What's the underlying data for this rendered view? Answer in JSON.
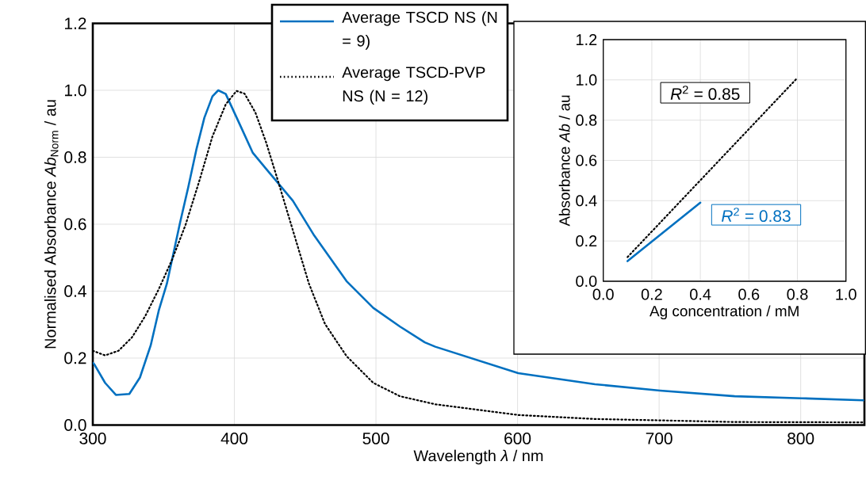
{
  "chart_data": [
    {
      "type": "line",
      "xlabel": "Wavelength *λ* / nm",
      "ylabel": "Normalised Absorbance *Ab*$_{Norm}$ / au",
      "xlim": [
        300,
        845
      ],
      "ylim": [
        0,
        1.2
      ],
      "xticks": [
        300,
        400,
        500,
        600,
        700,
        800
      ],
      "yticks": [
        {
          "value": 0,
          "label": "0.0"
        },
        {
          "value": 0.2,
          "label": "0.2"
        },
        {
          "value": 0.4,
          "label": "0.4"
        },
        {
          "value": 0.6,
          "label": "0.6"
        },
        {
          "value": 0.8,
          "label": "0.8"
        },
        {
          "value": 1.0,
          "label": "1.0"
        },
        {
          "value": 1.2,
          "label": "1.2"
        }
      ],
      "grid": true,
      "legend": "top",
      "series": [
        {
          "name": "Average TSCD NS (N = 9)",
          "color": "#0070c0",
          "line_style": "solid",
          "x": [
            300,
            301,
            308.7,
            316.3,
            325.8,
            333.3,
            340.9,
            346.6,
            352.3,
            361.7,
            367.4,
            373.1,
            378.8,
            384.5,
            388.6,
            393.9,
            403.4,
            412.9,
            422.3,
            431.8,
            441.3,
            456.4,
            479.2,
            498.1,
            517,
            534.5,
            541.9,
            600.5,
            654.7,
            700.6,
            753.4,
            800.8,
            844.2
          ],
          "values": [
            0.186,
            0.182,
            0.126,
            0.09,
            0.093,
            0.142,
            0.238,
            0.342,
            0.422,
            0.606,
            0.71,
            0.822,
            0.918,
            0.982,
            1.0,
            0.989,
            0.902,
            0.814,
            0.766,
            0.718,
            0.67,
            0.566,
            0.43,
            0.35,
            0.294,
            0.247,
            0.234,
            0.155,
            0.122,
            0.103,
            0.086,
            0.08,
            0.074
          ]
        },
        {
          "name": "Average TSCD-PVP NS (N = 12)",
          "color": "#000000",
          "line_style": "dotted",
          "x": [
            300,
            308.7,
            318.2,
            327.7,
            337.1,
            346.6,
            356,
            365.5,
            375,
            384.5,
            393.9,
            401.5,
            407.2,
            414.8,
            422.3,
            429.9,
            441.3,
            452.7,
            464,
            479.2,
            498.1,
            517,
            541.9,
            600.5,
            654.7,
            700.6,
            753.4,
            844.2
          ],
          "values": [
            0.222,
            0.208,
            0.222,
            0.262,
            0.326,
            0.406,
            0.494,
            0.598,
            0.726,
            0.862,
            0.958,
            0.998,
            0.99,
            0.934,
            0.846,
            0.742,
            0.582,
            0.422,
            0.302,
            0.206,
            0.126,
            0.086,
            0.062,
            0.03,
            0.018,
            0.014,
            0.009,
            0.008
          ]
        }
      ]
    },
    {
      "type": "line",
      "xlabel": "Ag concentration / mM",
      "ylabel": "Absorbance *Ab* / au",
      "xlim": [
        0,
        1
      ],
      "ylim": [
        0,
        1.2
      ],
      "xticks": [
        {
          "value": 0,
          "label": "0.0"
        },
        {
          "value": 0.2,
          "label": "0.2"
        },
        {
          "value": 0.4,
          "label": "0.4"
        },
        {
          "value": 0.6,
          "label": "0.6"
        },
        {
          "value": 0.8,
          "label": "0.8"
        },
        {
          "value": 1.0,
          "label": "1.0"
        }
      ],
      "yticks": [
        {
          "value": 0,
          "label": "0.0"
        },
        {
          "value": 0.2,
          "label": "0.2"
        },
        {
          "value": 0.4,
          "label": "0.4"
        },
        {
          "value": 0.6,
          "label": "0.6"
        },
        {
          "value": 0.8,
          "label": "0.8"
        },
        {
          "value": 1.0,
          "label": "1.0"
        },
        {
          "value": 1.2,
          "label": "1.2"
        }
      ],
      "grid": true,
      "annotations": [
        "*R*$^{2}$ = 0.85",
        "*R*$^{2}$ = 0.83"
      ],
      "series": [
        {
          "color": "#000000",
          "line_style": "dotted",
          "x": [
            0.1,
            0.8
          ],
          "values": [
            0.12,
            1.01
          ]
        },
        {
          "color": "#0070c0",
          "line_style": "solid",
          "x": [
            0.1,
            0.4
          ],
          "values": [
            0.1,
            0.39
          ]
        }
      ]
    }
  ]
}
